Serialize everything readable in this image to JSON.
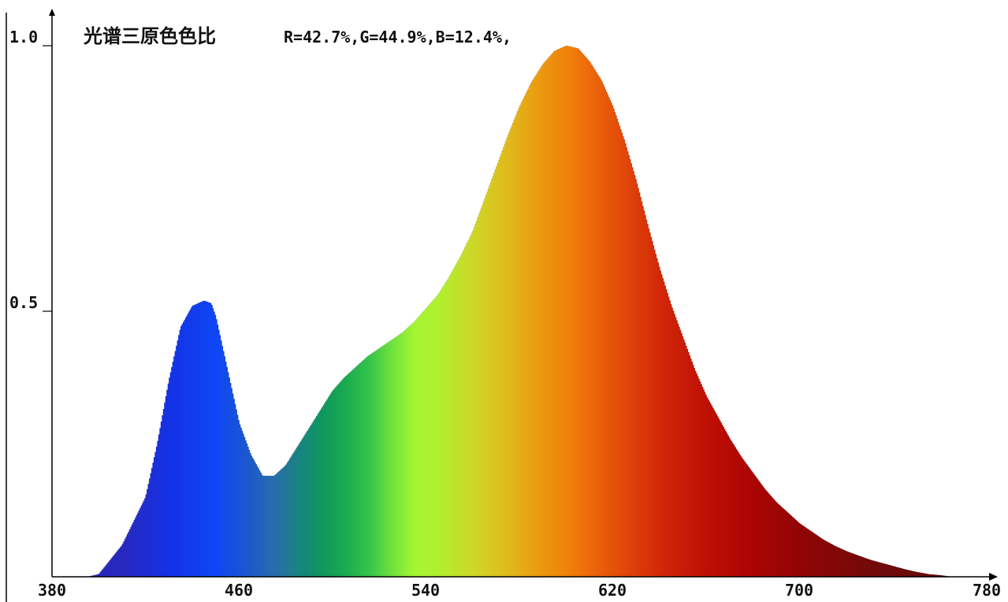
{
  "chart_data": {
    "type": "area",
    "title": "光谱三原色色比",
    "subtitle": "R=42.7%,G=44.9%,B=12.4%,",
    "xlabel": "",
    "ylabel": "",
    "xlim": [
      380,
      780
    ],
    "ylim": [
      0,
      1.0
    ],
    "x_ticks": [
      "380",
      "460",
      "540",
      "620",
      "700",
      "780"
    ],
    "y_ticks": [
      "0.5",
      "1.0"
    ],
    "grid": false,
    "fill": "spectral-rainbow-by-wavelength",
    "series": [
      {
        "x": [
          380,
          395,
          400,
          410,
          420,
          425,
          430,
          435,
          440,
          445,
          448,
          450,
          452,
          455,
          458,
          460,
          465,
          470,
          475,
          480,
          485,
          490,
          495,
          500,
          505,
          510,
          515,
          520,
          525,
          530,
          535,
          540,
          545,
          550,
          555,
          560,
          565,
          570,
          575,
          580,
          585,
          590,
          595,
          600,
          605,
          610,
          615,
          620,
          625,
          630,
          635,
          640,
          645,
          650,
          655,
          660,
          665,
          670,
          675,
          680,
          685,
          690,
          695,
          700,
          705,
          710,
          715,
          720,
          725,
          730,
          735,
          740,
          745,
          750,
          755,
          760,
          765,
          780
        ],
        "values": [
          0.0,
          0.0,
          0.005,
          0.06,
          0.15,
          0.25,
          0.37,
          0.47,
          0.51,
          0.52,
          0.515,
          0.49,
          0.45,
          0.39,
          0.33,
          0.29,
          0.23,
          0.19,
          0.19,
          0.21,
          0.245,
          0.28,
          0.315,
          0.35,
          0.375,
          0.395,
          0.415,
          0.43,
          0.445,
          0.46,
          0.48,
          0.505,
          0.53,
          0.565,
          0.605,
          0.65,
          0.71,
          0.77,
          0.83,
          0.885,
          0.93,
          0.965,
          0.99,
          1.0,
          0.995,
          0.97,
          0.935,
          0.885,
          0.82,
          0.745,
          0.66,
          0.58,
          0.51,
          0.45,
          0.39,
          0.34,
          0.3,
          0.26,
          0.225,
          0.195,
          0.165,
          0.14,
          0.12,
          0.1,
          0.085,
          0.07,
          0.058,
          0.048,
          0.04,
          0.032,
          0.026,
          0.02,
          0.014,
          0.009,
          0.005,
          0.003,
          0.0,
          0.0
        ]
      }
    ]
  },
  "colors": {
    "axis": "#000000",
    "text": "#111111",
    "background": "#ffffff"
  }
}
